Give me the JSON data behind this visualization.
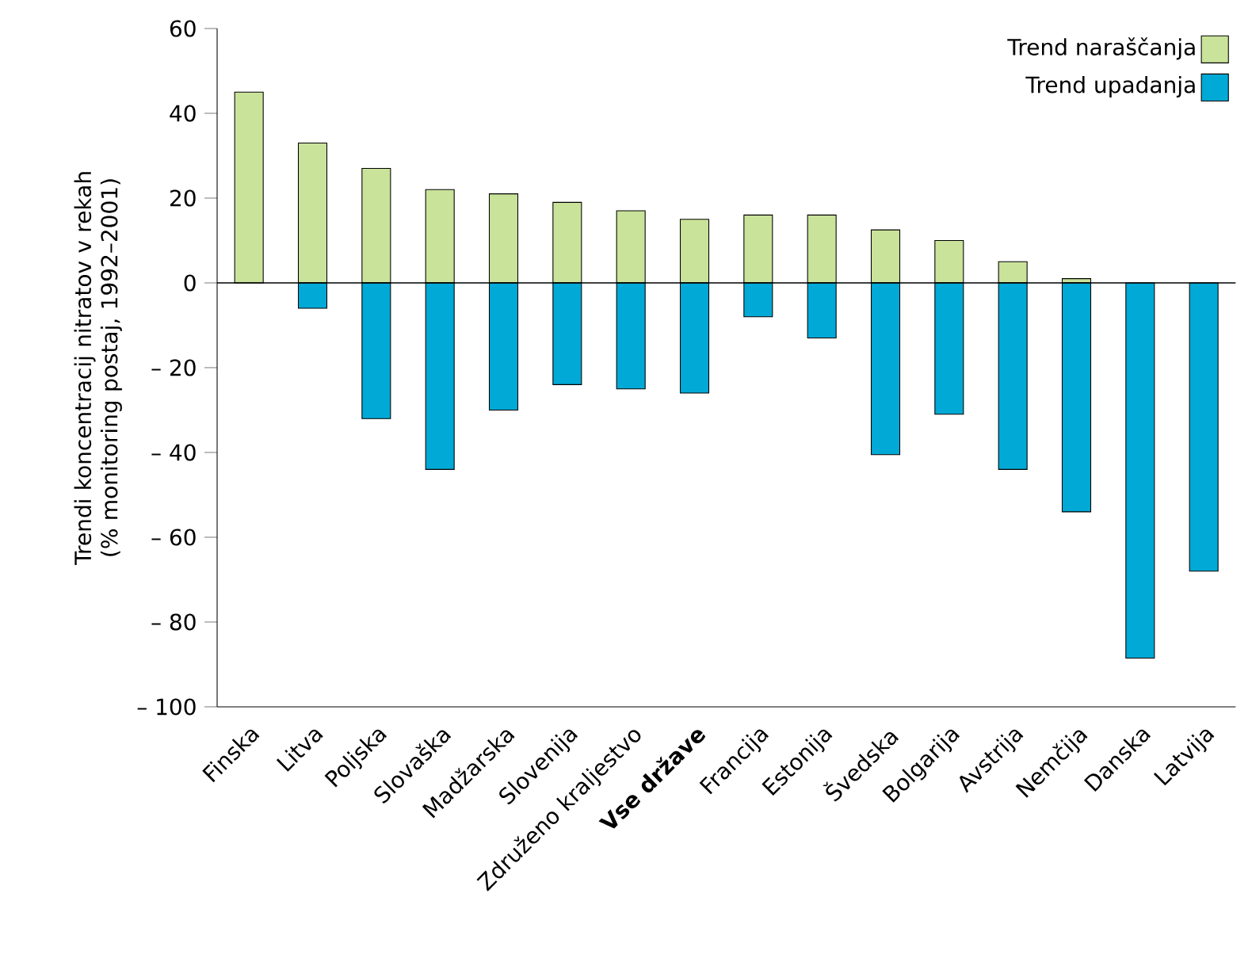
{
  "chart_data": {
    "type": "bar",
    "stacked": true,
    "ylabel": "Trendi koncentracij nitratov v rekah (% monitoring postaj, 1992–2001)",
    "categories": [
      "Finska",
      "Litva",
      "Poljska",
      "Slovaška",
      "Madžarska",
      "Slovenija",
      "Združeno kraljestvo",
      "**Vse države**",
      "Francija",
      "Estonija",
      "Švedska",
      "Bolgarija",
      "Avstrija",
      "Nemčija",
      "Danska",
      "Latvija"
    ],
    "series": [
      {
        "name": "Trend naraščanja",
        "color": "#c9e39a",
        "values": [
          45,
          33,
          27,
          22,
          21,
          19,
          17,
          15,
          16,
          16,
          12.5,
          10,
          5,
          1,
          null,
          null
        ]
      },
      {
        "name": "Trend upadanja",
        "color": "#00a9d6",
        "values": [
          null,
          -6,
          -32,
          -44,
          -30,
          -24,
          -25,
          -26,
          -8,
          -13,
          -40.5,
          -31,
          -44,
          -54,
          -88.5,
          -68
        ]
      }
    ],
    "ylim": [
      -100,
      60
    ],
    "yticks": [
      {
        "value": -100,
        "label": "– 100"
      },
      {
        "value": -80,
        "label": "– 80"
      },
      {
        "value": -60,
        "label": "– 60"
      },
      {
        "value": -40,
        "label": "– 40"
      },
      {
        "value": -20,
        "label": "– 20"
      },
      0,
      20,
      40,
      60
    ],
    "ref_lines": [
      {
        "axis": "y",
        "value": 0
      }
    ],
    "legend": "top right"
  }
}
